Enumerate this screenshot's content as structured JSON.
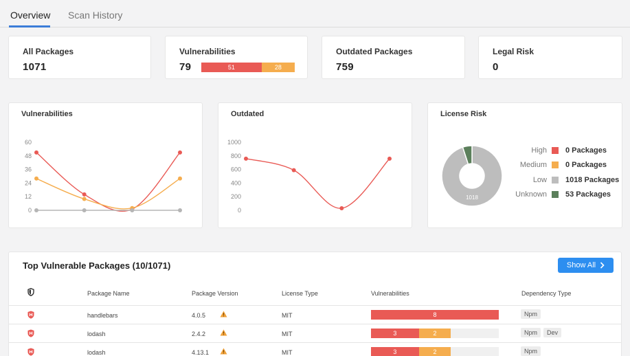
{
  "tabs": [
    {
      "label": "Overview",
      "active": true
    },
    {
      "label": "Scan History",
      "active": false
    }
  ],
  "stats": {
    "all_packages": {
      "label": "All Packages",
      "value": "1071"
    },
    "vulnerabilities": {
      "label": "Vulnerabilities",
      "value": "79",
      "high": "51",
      "medium": "28"
    },
    "outdated": {
      "label": "Outdated Packages",
      "value": "759"
    },
    "legal_risk": {
      "label": "Legal Risk",
      "value": "0"
    }
  },
  "colors": {
    "high": "#e95a55",
    "medium": "#f5ad4e",
    "low": "#bdbdbd",
    "unknown": "#5b7f5b",
    "accent": "#2d8ef0"
  },
  "charts": {
    "vulnerabilities_title": "Vulnerabilities",
    "outdated_title": "Outdated",
    "license_title": "License Risk"
  },
  "chart_data": [
    {
      "type": "line",
      "title": "Vulnerabilities",
      "yticks": [
        "60",
        "48",
        "36",
        "24",
        "12",
        "0"
      ],
      "ylim": [
        0,
        60
      ],
      "x": [
        0,
        1,
        2,
        3
      ],
      "series": [
        {
          "color": "#e95a55",
          "values": [
            51,
            14,
            1,
            51
          ]
        },
        {
          "color": "#f5ad4e",
          "values": [
            28,
            10,
            2,
            28
          ]
        },
        {
          "color": "#b5b5b5",
          "values": [
            0,
            0,
            0,
            0
          ]
        }
      ]
    },
    {
      "type": "line",
      "title": "Outdated",
      "yticks": [
        "1000",
        "800",
        "600",
        "400",
        "200",
        "0"
      ],
      "ylim": [
        0,
        1000
      ],
      "x": [
        0,
        1,
        2,
        3
      ],
      "series": [
        {
          "color": "#e95a55",
          "values": [
            759,
            590,
            30,
            759
          ]
        }
      ]
    },
    {
      "type": "pie",
      "title": "License Risk",
      "center_label": "1018",
      "slices": [
        {
          "name": "High",
          "value": 0,
          "color": "#e95a55"
        },
        {
          "name": "Medium",
          "value": 0,
          "color": "#f5ad4e"
        },
        {
          "name": "Low",
          "value": 1018,
          "color": "#bdbdbd"
        },
        {
          "name": "Unknown",
          "value": 53,
          "color": "#5b7f5b"
        }
      ]
    }
  ],
  "license_legend": [
    {
      "name": "High",
      "count": "0 Packages",
      "color": "#e95a55"
    },
    {
      "name": "Medium",
      "count": "0 Packages",
      "color": "#f5ad4e"
    },
    {
      "name": "Low",
      "count": "1018 Packages",
      "color": "#bdbdbd"
    },
    {
      "name": "Unknown",
      "count": "53 Packages",
      "color": "#5b7f5b"
    }
  ],
  "table": {
    "title": "Top Vulnerable Packages (10/1071)",
    "show_all_label": "Show All",
    "headers": {
      "shield_icon": "shield-icon",
      "name": "Package Name",
      "version": "Package Version",
      "license": "License Type",
      "vulnerabilities": "Vulnerabilities",
      "dependency": "Dependency Type"
    },
    "rows": [
      {
        "name": "handlebars",
        "version": "4.0.5",
        "license": "MIT",
        "high": "8",
        "medium": "",
        "high_share": 1.0,
        "medium_share": 0,
        "deps": [
          "Npm"
        ]
      },
      {
        "name": "lodash",
        "version": "2.4.2",
        "license": "MIT",
        "high": "3",
        "medium": "2",
        "high_share": 0.375,
        "medium_share": 0.25,
        "deps": [
          "Npm",
          "Dev"
        ]
      },
      {
        "name": "lodash",
        "version": "4.13.1",
        "license": "MIT",
        "high": "3",
        "medium": "2",
        "high_share": 0.375,
        "medium_share": 0.25,
        "deps": [
          "Npm"
        ]
      }
    ]
  }
}
